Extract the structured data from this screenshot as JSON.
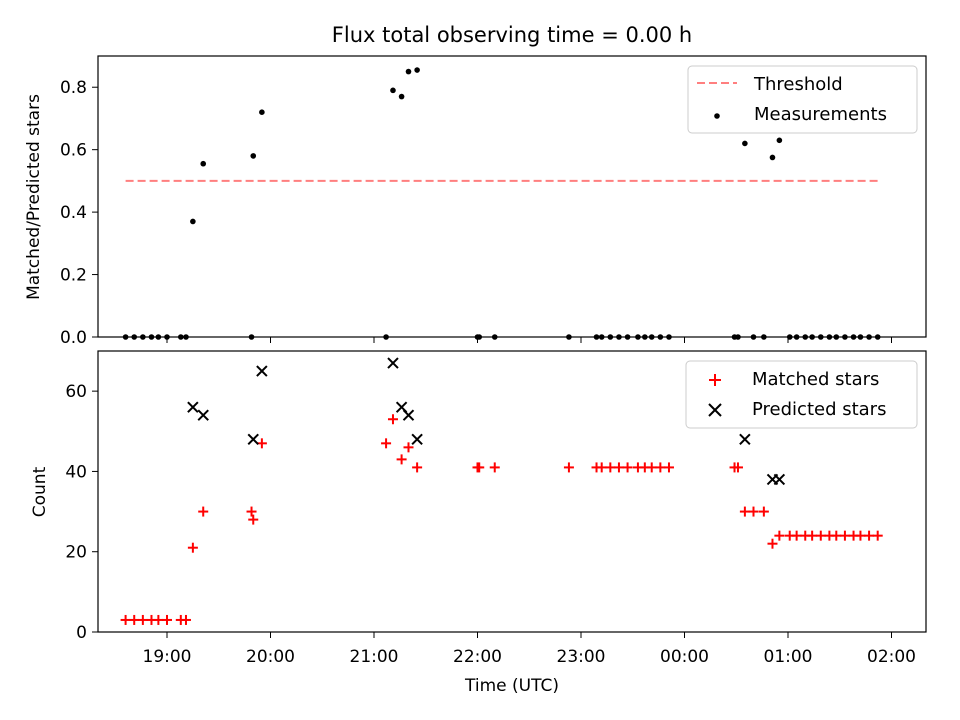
{
  "title": "Flux total observing time = 0.00 h",
  "chart_data": [
    {
      "type": "scatter",
      "ylabel": "Matched/Predicted stars",
      "ylim": [
        0,
        0.9
      ],
      "yticks": [
        0.0,
        0.2,
        0.4,
        0.6,
        0.8
      ],
      "ytick_labels": [
        "0.0",
        "0.2",
        "0.4",
        "0.6",
        "0.8"
      ],
      "threshold": {
        "name": "Threshold",
        "value": 0.5,
        "x_range": [
          "18:36",
          "01:52"
        ],
        "color": "#ff7f7f"
      },
      "series": [
        {
          "name": "Measurements",
          "marker": "dot",
          "color": "#000000",
          "points": [
            [
              "18:36",
              0.0
            ],
            [
              "18:41",
              0.0
            ],
            [
              "18:46",
              0.0
            ],
            [
              "18:51",
              0.0
            ],
            [
              "18:55",
              0.0
            ],
            [
              "19:00",
              0.0
            ],
            [
              "19:08",
              0.0
            ],
            [
              "19:11",
              0.0
            ],
            [
              "19:15",
              0.37
            ],
            [
              "19:21",
              0.555
            ],
            [
              "19:49",
              0.0
            ],
            [
              "19:50",
              0.58
            ],
            [
              "19:55",
              0.72
            ],
            [
              "21:07",
              0.0
            ],
            [
              "21:11",
              0.79
            ],
            [
              "21:16",
              0.77
            ],
            [
              "21:20",
              0.85
            ],
            [
              "21:25",
              0.855
            ],
            [
              "22:00",
              0.0
            ],
            [
              "22:01",
              0.0
            ],
            [
              "22:10",
              0.0
            ],
            [
              "22:53",
              0.0
            ],
            [
              "23:09",
              0.0
            ],
            [
              "23:12",
              0.0
            ],
            [
              "23:17",
              0.0
            ],
            [
              "23:22",
              0.0
            ],
            [
              "23:27",
              0.0
            ],
            [
              "23:33",
              0.0
            ],
            [
              "23:37",
              0.0
            ],
            [
              "23:41",
              0.0
            ],
            [
              "23:46",
              0.0
            ],
            [
              "23:51",
              0.0
            ],
            [
              "00:29",
              0.0
            ],
            [
              "00:31",
              0.0
            ],
            [
              "00:35",
              0.62
            ],
            [
              "00:40",
              0.0
            ],
            [
              "00:46",
              0.0
            ],
            [
              "00:51",
              0.575
            ],
            [
              "00:55",
              0.63
            ],
            [
              "01:01",
              0.0
            ],
            [
              "01:05",
              0.0
            ],
            [
              "01:10",
              0.0
            ],
            [
              "01:14",
              0.0
            ],
            [
              "01:19",
              0.0
            ],
            [
              "01:24",
              0.0
            ],
            [
              "01:28",
              0.0
            ],
            [
              "01:33",
              0.0
            ],
            [
              "01:38",
              0.0
            ],
            [
              "01:42",
              0.0
            ],
            [
              "01:47",
              0.0
            ],
            [
              "01:52",
              0.0
            ]
          ]
        }
      ]
    },
    {
      "type": "scatter",
      "xlabel": "Time (UTC)",
      "ylabel": "Count",
      "ylim": [
        0,
        70
      ],
      "yticks": [
        0,
        20,
        40,
        60
      ],
      "ytick_labels": [
        "0",
        "20",
        "40",
        "60"
      ],
      "xticks": [
        "19:00",
        "20:00",
        "21:00",
        "22:00",
        "23:00",
        "00:00",
        "01:00",
        "02:00"
      ],
      "series": [
        {
          "name": "Matched stars",
          "marker": "plus",
          "color": "#ff0000",
          "points": [
            [
              "18:36",
              3
            ],
            [
              "18:41",
              3
            ],
            [
              "18:46",
              3
            ],
            [
              "18:51",
              3
            ],
            [
              "18:55",
              3
            ],
            [
              "19:00",
              3
            ],
            [
              "19:08",
              3
            ],
            [
              "19:11",
              3
            ],
            [
              "19:15",
              21
            ],
            [
              "19:21",
              30
            ],
            [
              "19:49",
              30
            ],
            [
              "19:50",
              28
            ],
            [
              "19:55",
              47
            ],
            [
              "21:07",
              47
            ],
            [
              "21:11",
              53
            ],
            [
              "21:16",
              43
            ],
            [
              "21:20",
              46
            ],
            [
              "21:25",
              41
            ],
            [
              "22:00",
              41
            ],
            [
              "22:01",
              41
            ],
            [
              "22:10",
              41
            ],
            [
              "22:53",
              41
            ],
            [
              "23:09",
              41
            ],
            [
              "23:12",
              41
            ],
            [
              "23:17",
              41
            ],
            [
              "23:22",
              41
            ],
            [
              "23:27",
              41
            ],
            [
              "23:33",
              41
            ],
            [
              "23:37",
              41
            ],
            [
              "23:41",
              41
            ],
            [
              "23:46",
              41
            ],
            [
              "23:51",
              41
            ],
            [
              "00:29",
              41
            ],
            [
              "00:31",
              41
            ],
            [
              "00:35",
              30
            ],
            [
              "00:40",
              30
            ],
            [
              "00:46",
              30
            ],
            [
              "00:51",
              22
            ],
            [
              "00:55",
              24
            ],
            [
              "01:01",
              24
            ],
            [
              "01:05",
              24
            ],
            [
              "01:10",
              24
            ],
            [
              "01:14",
              24
            ],
            [
              "01:19",
              24
            ],
            [
              "01:24",
              24
            ],
            [
              "01:28",
              24
            ],
            [
              "01:33",
              24
            ],
            [
              "01:38",
              24
            ],
            [
              "01:42",
              24
            ],
            [
              "01:47",
              24
            ],
            [
              "01:52",
              24
            ]
          ]
        },
        {
          "name": "Predicted stars",
          "marker": "x",
          "color": "#000000",
          "points": [
            [
              "19:15",
              56
            ],
            [
              "19:21",
              54
            ],
            [
              "19:50",
              48
            ],
            [
              "19:55",
              65
            ],
            [
              "21:11",
              67
            ],
            [
              "21:16",
              56
            ],
            [
              "21:20",
              54
            ],
            [
              "21:25",
              48
            ],
            [
              "00:35",
              48
            ],
            [
              "00:51",
              38
            ],
            [
              "00:55",
              38
            ]
          ]
        }
      ]
    }
  ]
}
